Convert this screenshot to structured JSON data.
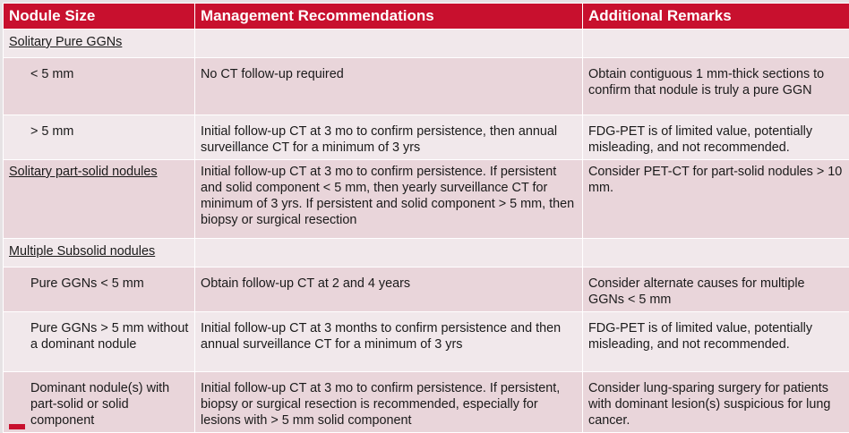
{
  "headers": [
    "Nodule Size",
    "Management Recommendations",
    "Additional Remarks"
  ],
  "rows": [
    {
      "type": "section",
      "size": "Solitary Pure GGNs",
      "mgmt": "",
      "remarks": ""
    },
    {
      "type": "sub",
      "size": "< 5 mm",
      "mgmt": "No CT follow-up required",
      "remarks": "Obtain contiguous 1 mm-thick sections to confirm that nodule is truly a pure GGN"
    },
    {
      "type": "sub",
      "size": "> 5 mm",
      "mgmt": "Initial follow-up CT at 3 mo to confirm persistence, then annual surveillance CT for a minimum of 3 yrs",
      "remarks": "FDG-PET is of limited value, potentially misleading, and not recommended."
    },
    {
      "type": "section",
      "size": "Solitary part-solid nodules",
      "mgmt": "Initial follow-up CT at 3 mo to confirm persistence. If persistent and solid component < 5 mm, then yearly surveillance CT for minimum of 3 yrs. If persistent and solid component > 5 mm, then biopsy or surgical resection",
      "remarks": "Consider PET-CT for part-solid nodules > 10 mm."
    },
    {
      "type": "section",
      "size": "Multiple Subsolid nodules",
      "mgmt": "",
      "remarks": ""
    },
    {
      "type": "sub",
      "size": "Pure GGNs < 5 mm",
      "mgmt": "Obtain follow-up CT at 2 and 4 years",
      "remarks": "Consider alternate causes for multiple GGNs < 5 mm"
    },
    {
      "type": "sub",
      "size": "Pure GGNs > 5 mm without a dominant nodule",
      "mgmt": "Initial follow-up CT at 3 months to confirm persistence and then annual surveillance CT for a minimum of 3 yrs",
      "remarks": "FDG-PET is of limited value, potentially misleading, and not recommended."
    },
    {
      "type": "sub",
      "size": "Dominant nodule(s) with part-solid or solid component",
      "mgmt": "Initial follow-up CT at 3 mo to confirm persistence. If persistent, biopsy or surgical resection is recommended, especially for lesions with > 5 mm solid component",
      "remarks": "Consider lung-sparing surgery for patients with dominant lesion(s) suspicious for lung cancer."
    }
  ]
}
